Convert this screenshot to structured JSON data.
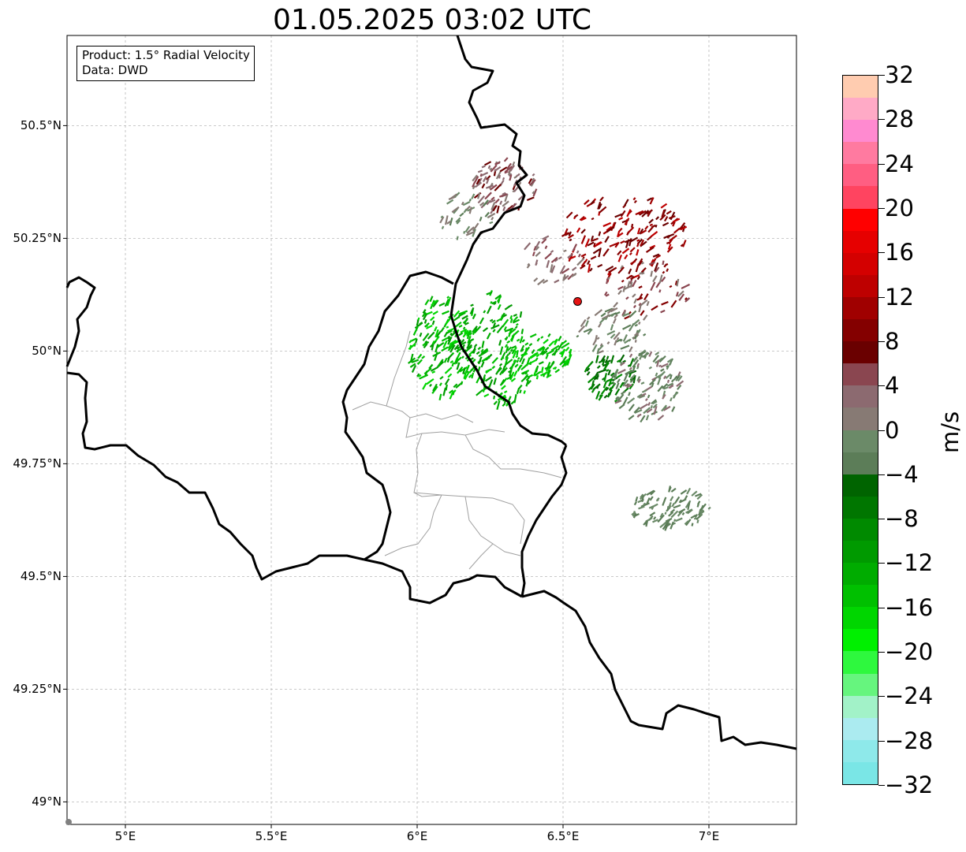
{
  "title": "01.05.2025 03:02 UTC",
  "info": {
    "product": "Product: 1.5° Radial Velocity",
    "source": "Data: DWD"
  },
  "axes": {
    "lon_range": [
      4.8,
      7.3
    ],
    "lat_range": [
      48.95,
      50.7
    ],
    "lon_ticks": [
      {
        "value": 5.0,
        "label": "5°E"
      },
      {
        "value": 5.5,
        "label": "5.5°E"
      },
      {
        "value": 6.0,
        "label": "6°E"
      },
      {
        "value": 6.5,
        "label": "6.5°E"
      },
      {
        "value": 7.0,
        "label": "7°E"
      }
    ],
    "lat_ticks": [
      {
        "value": 50.5,
        "label": "50.5°N"
      },
      {
        "value": 50.25,
        "label": "50.25°N"
      },
      {
        "value": 50.0,
        "label": "50°N"
      },
      {
        "value": 49.75,
        "label": "49.75°N"
      },
      {
        "value": 49.5,
        "label": "49.5°N"
      },
      {
        "value": 49.25,
        "label": "49.25°N"
      },
      {
        "value": 49.0,
        "label": "49°N"
      }
    ],
    "grid": true
  },
  "radar_site": {
    "lon": 6.55,
    "lat": 50.11,
    "color": "#e61414"
  },
  "colorbar": {
    "unit": "m/s",
    "min": -32,
    "max": 32,
    "ticks": [
      {
        "value": 32,
        "label": "32"
      },
      {
        "value": 28,
        "label": "28"
      },
      {
        "value": 24,
        "label": "24"
      },
      {
        "value": 20,
        "label": "20"
      },
      {
        "value": 16,
        "label": "16"
      },
      {
        "value": 12,
        "label": "12"
      },
      {
        "value": 8,
        "label": "8"
      },
      {
        "value": 4,
        "label": "4"
      },
      {
        "value": 0,
        "label": "0"
      },
      {
        "value": -4,
        "label": "−4"
      },
      {
        "value": -8,
        "label": "−8"
      },
      {
        "value": -12,
        "label": "−12"
      },
      {
        "value": -16,
        "label": "−16"
      },
      {
        "value": -20,
        "label": "−20"
      },
      {
        "value": -24,
        "label": "−24"
      },
      {
        "value": -28,
        "label": "−28"
      },
      {
        "value": -32,
        "label": "−32"
      }
    ],
    "colors": [
      "#7ae6e6",
      "#8ee9ea",
      "#abebf0",
      "#a2f2c8",
      "#66f57e",
      "#2ef83e",
      "#00f000",
      "#00d600",
      "#00c000",
      "#00ac00",
      "#009a00",
      "#008a00",
      "#007600",
      "#006400",
      "#5c7d58",
      "#6b8a68",
      "#877a74",
      "#8c6a70",
      "#8a4650",
      "#6a0000",
      "#840000",
      "#a00000",
      "#be0000",
      "#d40000",
      "#e60000",
      "#ff0000",
      "#ff4460",
      "#ff5e82",
      "#ff7aa0",
      "#ff8ad0",
      "#ffaac6",
      "#ffccb0"
    ]
  },
  "boundary_color": "#000000",
  "region_color": "#a0a0a0"
}
